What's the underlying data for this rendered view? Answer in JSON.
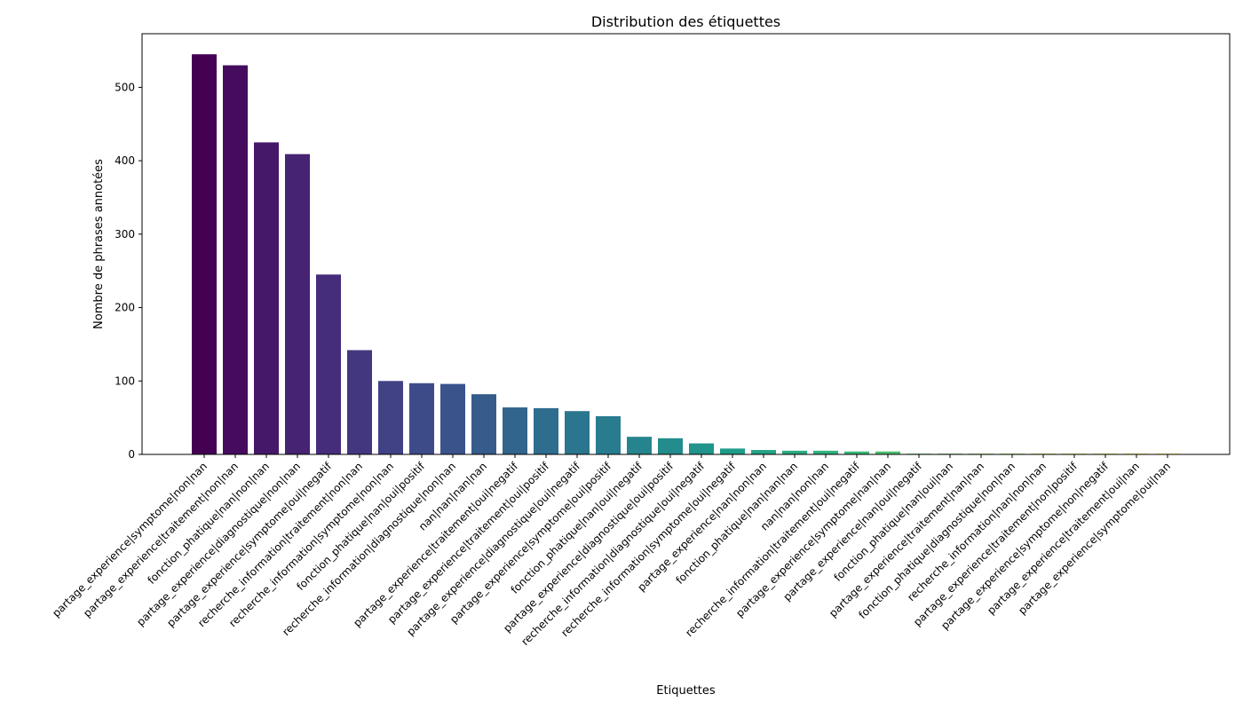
{
  "chart_data": {
    "type": "bar",
    "title": "Distribution des étiquettes",
    "xlabel": "Etiquettes",
    "ylabel": "Nombre de phrases annotées",
    "ylim": [
      0,
      573
    ],
    "yticks": [
      0,
      100,
      200,
      300,
      400,
      500
    ],
    "grid": false,
    "colormap": "viridis",
    "categories": [
      "partage_experience|symptome|non|nan",
      "partage_experience|traitement|non|nan",
      "fonction_phatique|nan|non|nan",
      "partage_experience|diagnostique|non|nan",
      "partage_experience|symptome|oui|negatif",
      "recherche_information|traitement|non|nan",
      "recherche_information|symptome|non|nan",
      "fonction_phatique|nan|oui|positif",
      "recherche_information|diagnostique|non|nan",
      "nan|nan|nan|nan",
      "partage_experience|traitement|oui|negatif",
      "partage_experience|traitement|oui|positif",
      "partage_experience|diagnostique|oui|negatif",
      "partage_experience|symptome|oui|positif",
      "fonction_phatique|nan|oui|negatif",
      "partage_experience|diagnostique|oui|positif",
      "recherche_information|diagnostique|oui|negatif",
      "recherche_information|symptome|oui|negatif",
      "partage_experience|nan|non|nan",
      "fonction_phatique|nan|nan|nan",
      "nan|nan|non|nan",
      "recherche_information|traitement|oui|negatif",
      "partage_experience|symptome|nan|nan",
      "partage_experience|nan|oui|negatif",
      "fonction_phatique|nan|oui|nan",
      "partage_experience|traitement|nan|nan",
      "fonction_phatique|diagnostique|non|nan",
      "recherche_information|nan|non|nan",
      "partage_experience|traitement|non|positif",
      "partage_experience|symptome|non|negatif",
      "partage_experience|traitement|oui|nan",
      "partage_experience|symptome|oui|nan"
    ],
    "values": [
      545,
      530,
      425,
      409,
      245,
      142,
      100,
      97,
      96,
      82,
      64,
      63,
      59,
      52,
      24,
      22,
      15,
      8,
      6,
      5,
      5,
      4,
      4,
      1,
      1,
      1,
      1,
      1,
      1,
      1,
      1,
      1
    ]
  }
}
